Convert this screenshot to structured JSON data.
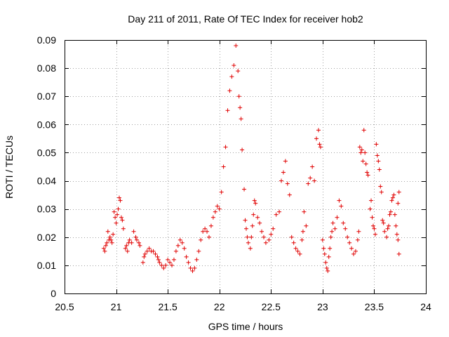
{
  "chart_data": {
    "type": "scatter",
    "title": "Day 211 of 2011, Rate Of TEC Index for receiver hob2",
    "xlabel": "GPS time / hours",
    "ylabel": "ROTI / TECUs",
    "xlim": [
      20.5,
      24
    ],
    "ylim": [
      0,
      0.09
    ],
    "xticks": [
      "20.5",
      "21",
      "21.5",
      "22",
      "22.5",
      "23",
      "23.5",
      "24"
    ],
    "yticks": [
      "0",
      "0.01",
      "0.02",
      "0.03",
      "0.04",
      "0.05",
      "0.06",
      "0.07",
      "0.08",
      "0.09"
    ],
    "grid": true,
    "marker": "+",
    "color": "#e00000",
    "series": [
      {
        "name": "hob2",
        "points": [
          [
            20.88,
            0.016
          ],
          [
            20.89,
            0.015
          ],
          [
            20.9,
            0.017
          ],
          [
            20.91,
            0.018
          ],
          [
            20.92,
            0.022
          ],
          [
            20.93,
            0.019
          ],
          [
            20.94,
            0.02
          ],
          [
            20.95,
            0.019
          ],
          [
            20.96,
            0.018
          ],
          [
            20.97,
            0.021
          ],
          [
            20.98,
            0.029
          ],
          [
            20.99,
            0.027
          ],
          [
            21.0,
            0.025
          ],
          [
            21.01,
            0.028
          ],
          [
            21.02,
            0.03
          ],
          [
            21.03,
            0.034
          ],
          [
            21.04,
            0.033
          ],
          [
            21.05,
            0.027
          ],
          [
            21.06,
            0.026
          ],
          [
            21.07,
            0.023
          ],
          [
            21.09,
            0.016
          ],
          [
            21.1,
            0.017
          ],
          [
            21.11,
            0.015
          ],
          [
            21.12,
            0.018
          ],
          [
            21.13,
            0.019
          ],
          [
            21.15,
            0.018
          ],
          [
            21.17,
            0.022
          ],
          [
            21.19,
            0.02
          ],
          [
            21.2,
            0.019
          ],
          [
            21.22,
            0.018
          ],
          [
            21.23,
            0.017
          ],
          [
            21.26,
            0.011
          ],
          [
            21.27,
            0.013
          ],
          [
            21.28,
            0.014
          ],
          [
            21.3,
            0.015
          ],
          [
            21.32,
            0.016
          ],
          [
            21.34,
            0.015
          ],
          [
            21.36,
            0.015
          ],
          [
            21.38,
            0.014
          ],
          [
            21.4,
            0.013
          ],
          [
            21.41,
            0.012
          ],
          [
            21.42,
            0.011
          ],
          [
            21.44,
            0.01
          ],
          [
            21.46,
            0.009
          ],
          [
            21.48,
            0.01
          ],
          [
            21.5,
            0.012
          ],
          [
            21.52,
            0.011
          ],
          [
            21.54,
            0.01
          ],
          [
            21.56,
            0.012
          ],
          [
            21.58,
            0.015
          ],
          [
            21.6,
            0.017
          ],
          [
            21.62,
            0.019
          ],
          [
            21.64,
            0.018
          ],
          [
            21.66,
            0.016
          ],
          [
            21.68,
            0.013
          ],
          [
            21.7,
            0.011
          ],
          [
            21.72,
            0.009
          ],
          [
            21.74,
            0.008
          ],
          [
            21.76,
            0.009
          ],
          [
            21.78,
            0.012
          ],
          [
            21.8,
            0.015
          ],
          [
            21.82,
            0.019
          ],
          [
            21.84,
            0.022
          ],
          [
            21.86,
            0.023
          ],
          [
            21.88,
            0.022
          ],
          [
            21.9,
            0.02
          ],
          [
            21.92,
            0.024
          ],
          [
            21.94,
            0.027
          ],
          [
            21.96,
            0.029
          ],
          [
            21.98,
            0.031
          ],
          [
            22.0,
            0.03
          ],
          [
            22.02,
            0.036
          ],
          [
            22.04,
            0.045
          ],
          [
            22.06,
            0.052
          ],
          [
            22.08,
            0.065
          ],
          [
            22.1,
            0.072
          ],
          [
            22.12,
            0.077
          ],
          [
            22.14,
            0.081
          ],
          [
            22.16,
            0.088
          ],
          [
            22.18,
            0.079
          ],
          [
            22.19,
            0.07
          ],
          [
            22.2,
            0.066
          ],
          [
            22.21,
            0.062
          ],
          [
            22.22,
            0.051
          ],
          [
            22.24,
            0.037
          ],
          [
            22.25,
            0.026
          ],
          [
            22.26,
            0.023
          ],
          [
            22.27,
            0.02
          ],
          [
            22.28,
            0.018
          ],
          [
            22.3,
            0.016
          ],
          [
            22.31,
            0.02
          ],
          [
            22.32,
            0.024
          ],
          [
            22.33,
            0.028
          ],
          [
            22.34,
            0.033
          ],
          [
            22.35,
            0.032
          ],
          [
            22.37,
            0.027
          ],
          [
            22.39,
            0.025
          ],
          [
            22.41,
            0.022
          ],
          [
            22.43,
            0.02
          ],
          [
            22.45,
            0.018
          ],
          [
            22.48,
            0.019
          ],
          [
            22.5,
            0.021
          ],
          [
            22.52,
            0.023
          ],
          [
            22.55,
            0.028
          ],
          [
            22.58,
            0.029
          ],
          [
            22.6,
            0.04
          ],
          [
            22.62,
            0.043
          ],
          [
            22.64,
            0.047
          ],
          [
            22.66,
            0.039
          ],
          [
            22.68,
            0.035
          ],
          [
            22.7,
            0.02
          ],
          [
            22.72,
            0.018
          ],
          [
            22.74,
            0.016
          ],
          [
            22.76,
            0.015
          ],
          [
            22.78,
            0.014
          ],
          [
            22.8,
            0.019
          ],
          [
            22.81,
            0.022
          ],
          [
            22.82,
            0.029
          ],
          [
            22.84,
            0.024
          ],
          [
            22.86,
            0.039
          ],
          [
            22.88,
            0.041
          ],
          [
            22.9,
            0.045
          ],
          [
            22.92,
            0.04
          ],
          [
            22.94,
            0.055
          ],
          [
            22.96,
            0.058
          ],
          [
            22.97,
            0.053
          ],
          [
            22.98,
            0.052
          ],
          [
            23.0,
            0.019
          ],
          [
            23.01,
            0.016
          ],
          [
            23.02,
            0.014
          ],
          [
            23.03,
            0.011
          ],
          [
            23.04,
            0.009
          ],
          [
            23.05,
            0.008
          ],
          [
            23.06,
            0.013
          ],
          [
            23.07,
            0.016
          ],
          [
            23.08,
            0.02
          ],
          [
            23.09,
            0.022
          ],
          [
            23.1,
            0.025
          ],
          [
            23.12,
            0.023
          ],
          [
            23.14,
            0.027
          ],
          [
            23.16,
            0.033
          ],
          [
            23.18,
            0.031
          ],
          [
            23.2,
            0.025
          ],
          [
            23.22,
            0.023
          ],
          [
            23.24,
            0.02
          ],
          [
            23.26,
            0.018
          ],
          [
            23.28,
            0.016
          ],
          [
            23.3,
            0.014
          ],
          [
            23.32,
            0.015
          ],
          [
            23.34,
            0.019
          ],
          [
            23.35,
            0.022
          ],
          [
            23.36,
            0.052
          ],
          [
            23.37,
            0.05
          ],
          [
            23.38,
            0.051
          ],
          [
            23.39,
            0.047
          ],
          [
            23.4,
            0.058
          ],
          [
            23.41,
            0.05
          ],
          [
            23.42,
            0.046
          ],
          [
            23.43,
            0.043
          ],
          [
            23.44,
            0.042
          ],
          [
            23.46,
            0.03
          ],
          [
            23.47,
            0.033
          ],
          [
            23.48,
            0.027
          ],
          [
            23.49,
            0.024
          ],
          [
            23.5,
            0.023
          ],
          [
            23.51,
            0.021
          ],
          [
            23.52,
            0.053
          ],
          [
            23.53,
            0.049
          ],
          [
            23.54,
            0.047
          ],
          [
            23.55,
            0.044
          ],
          [
            23.56,
            0.038
          ],
          [
            23.57,
            0.036
          ],
          [
            23.58,
            0.026
          ],
          [
            23.59,
            0.025
          ],
          [
            23.6,
            0.022
          ],
          [
            23.62,
            0.02
          ],
          [
            23.63,
            0.023
          ],
          [
            23.64,
            0.024
          ],
          [
            23.65,
            0.028
          ],
          [
            23.66,
            0.029
          ],
          [
            23.67,
            0.033
          ],
          [
            23.68,
            0.034
          ],
          [
            23.69,
            0.035
          ],
          [
            23.7,
            0.028
          ],
          [
            23.71,
            0.024
          ],
          [
            23.72,
            0.021
          ],
          [
            23.73,
            0.019
          ],
          [
            23.74,
            0.014
          ],
          [
            23.74,
            0.036
          ],
          [
            23.73,
            0.032
          ]
        ]
      }
    ]
  }
}
